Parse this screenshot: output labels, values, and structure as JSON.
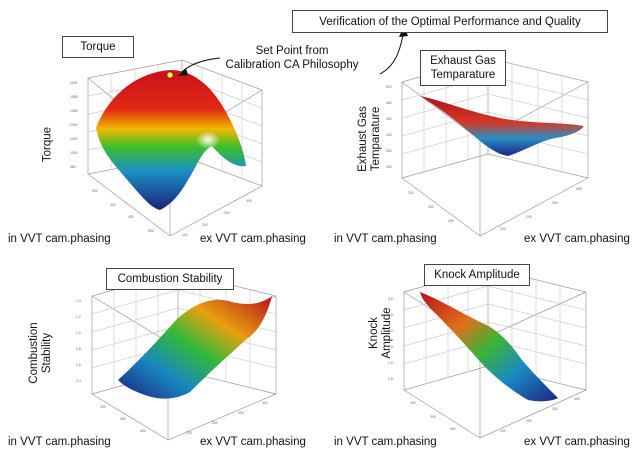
{
  "annotations": {
    "verification": "Verification of the Optimal Performance and Quality",
    "set_point_line1": "Set Point from",
    "set_point_line2": "Calibration CA Philosophy"
  },
  "panels": [
    {
      "title": "Torque",
      "z_label_lines": [
        "Torque"
      ],
      "x_label": "in VVT cam.phasing",
      "y_label": "ex VVT cam.phasing"
    },
    {
      "title_lines": [
        "Exhaust Gas",
        "Temparature"
      ],
      "z_label_lines": [
        "Exhaust Gas",
        "Temparature"
      ],
      "x_label": "in VVT cam.phasing",
      "y_label": "ex VVT cam.phasing"
    },
    {
      "title": "Combustion Stability",
      "z_label_lines": [
        "Combustion",
        "Stability"
      ],
      "x_label": "in VVT cam.phasing",
      "y_label": "ex VVT cam.phasing"
    },
    {
      "title": "Knock Amplitude",
      "z_label_lines": [
        "Knock",
        "Amplitude"
      ],
      "x_label": "in VVT cam.phasing",
      "y_label": "ex VVT cam.phasing"
    }
  ],
  "colors": {
    "surface_high": "#d0101a",
    "surface_mid_high": "#f0c000",
    "surface_mid": "#22b33c",
    "surface_mid_low": "#1890c8",
    "surface_low": "#1c2486",
    "set_point": "#ffff40"
  }
}
